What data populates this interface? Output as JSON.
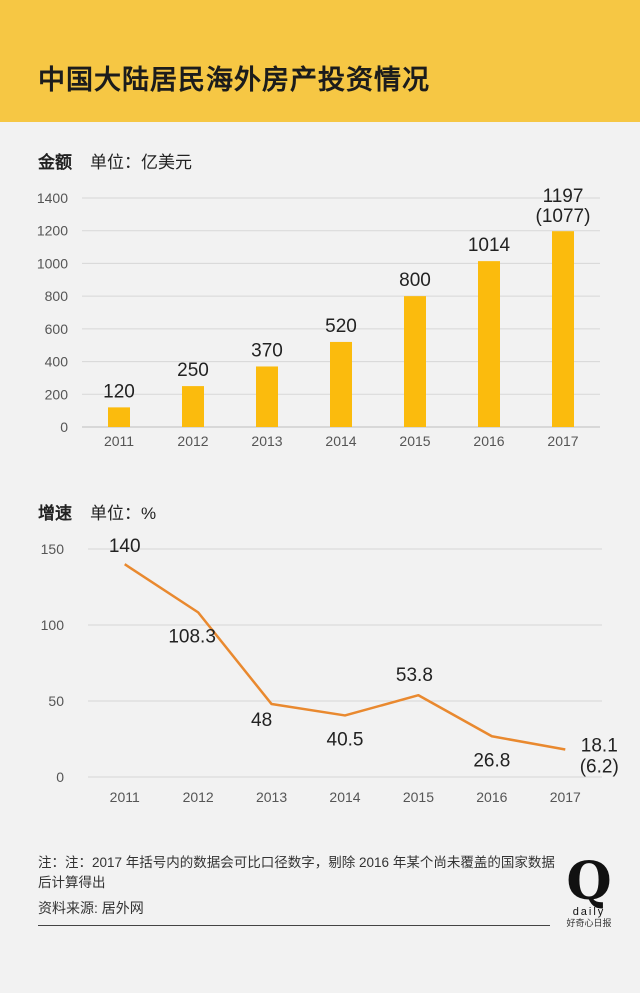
{
  "title": "中国大陆居民海外房产投资情况",
  "section1": {
    "label": "金额",
    "unit": "单位：亿美元"
  },
  "section2": {
    "label": "增速",
    "unit": "单位：%"
  },
  "note": "注：注：2017 年括号内的数据会可比口径数字，剔除 2016 年某个尚未覆盖的国家数据后计算得出",
  "source": "资料来源: 居外网",
  "logo": {
    "mark": "Q",
    "word": "daily",
    "tagline": "好奇心日报"
  },
  "colors": {
    "bar": "#fbbb0d",
    "line": "#e9892f",
    "header": "#f6c744"
  },
  "chart_data": [
    {
      "type": "bar",
      "categories": [
        "2011",
        "2012",
        "2013",
        "2014",
        "2015",
        "2016",
        "2017"
      ],
      "values": [
        120,
        250,
        370,
        520,
        800,
        1014,
        1197
      ],
      "value_labels": [
        "120",
        "250",
        "370",
        "520",
        "800",
        "1014",
        "1197"
      ],
      "extra_annotation": {
        "category": "2017",
        "text": "(1077)"
      },
      "title": "",
      "ylabel": "单位：亿美元",
      "yticks": [
        0,
        200,
        400,
        600,
        800,
        1000,
        1200,
        1400
      ],
      "ylim": [
        0,
        1400
      ],
      "grid": true
    },
    {
      "type": "line",
      "categories": [
        "2011",
        "2012",
        "2013",
        "2014",
        "2015",
        "2016",
        "2017"
      ],
      "values": [
        140,
        108.3,
        48,
        40.5,
        53.8,
        26.8,
        18.1
      ],
      "value_labels": [
        "140",
        "108.3",
        "48",
        "40.5",
        "53.8",
        "26.8",
        "18.1"
      ],
      "extra_annotation": {
        "category": "2017",
        "text": "(6.2)"
      },
      "title": "",
      "ylabel": "单位：%",
      "yticks": [
        0,
        50,
        100,
        150
      ],
      "ylim": [
        0,
        150
      ],
      "grid": true
    }
  ]
}
